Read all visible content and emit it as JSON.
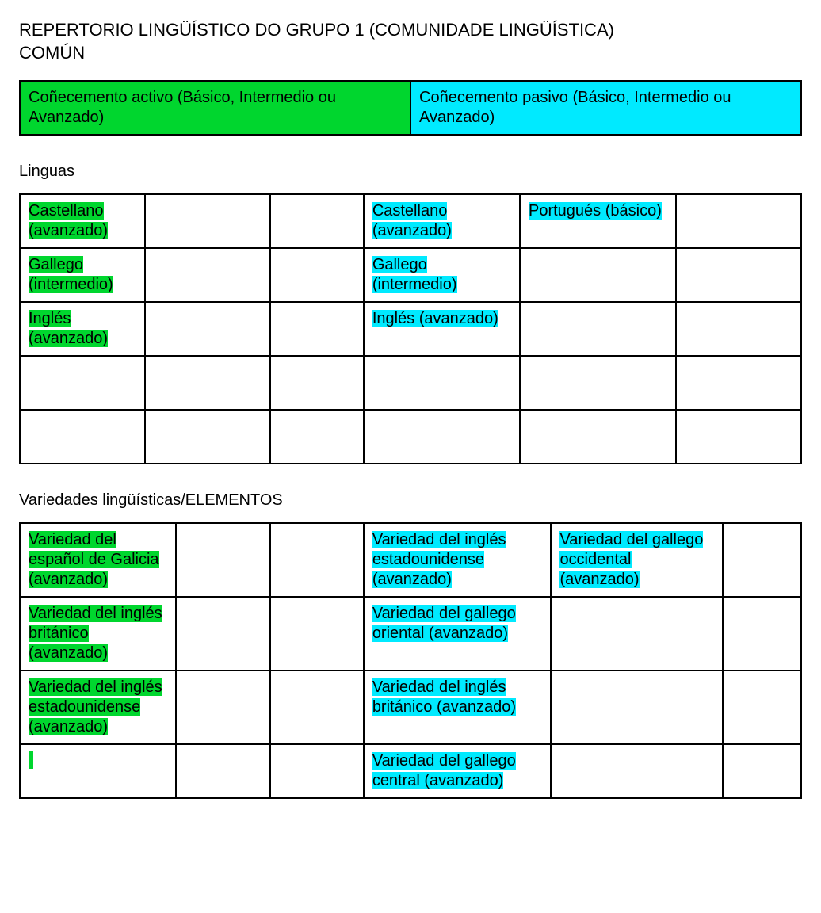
{
  "colors": {
    "green": "#00d62e",
    "cyan": "#00eaff",
    "border": "#000000",
    "text": "#000000",
    "background": "#ffffff"
  },
  "typography": {
    "title_fontsize": 22,
    "body_fontsize": 20,
    "font_family": "Arial"
  },
  "title": {
    "line1": "REPERTORIO LINGÜÍSTICO DO GRUPO 1 (COMUNIDADE LINGÜÍSTICA)",
    "line2": "COMÚN"
  },
  "legend": {
    "active": "Coñecemento activo (Básico, Intermedio ou Avanzado)",
    "passive": "Coñecemento pasivo (Básico, Intermedio ou Avanzado)"
  },
  "sections": {
    "linguas": {
      "heading": "Linguas",
      "columns": 6,
      "col_widths_percent": [
        16,
        16,
        12,
        20,
        20,
        16
      ],
      "rows": [
        [
          {
            "text": "Castellano (avanzado)",
            "hl": "green"
          },
          {
            "text": "",
            "hl": null
          },
          {
            "text": "",
            "hl": null
          },
          {
            "text": "Castellano (avanzado)",
            "hl": "cyan"
          },
          {
            "text": "Portugués (básico)",
            "hl": "cyan"
          },
          {
            "text": "",
            "hl": null
          }
        ],
        [
          {
            "text": "Gallego (intermedio)",
            "hl": "green"
          },
          {
            "text": "",
            "hl": null
          },
          {
            "text": "",
            "hl": null
          },
          {
            "text": "Gallego (intermedio)",
            "hl": "cyan"
          },
          {
            "text": "",
            "hl": null
          },
          {
            "text": "",
            "hl": null
          }
        ],
        [
          {
            "text": "Inglés (avanzado)",
            "hl": "green"
          },
          {
            "text": "",
            "hl": null
          },
          {
            "text": "",
            "hl": null
          },
          {
            "text": "Inglés (avanzado)",
            "hl": "cyan"
          },
          {
            "text": "",
            "hl": null
          },
          {
            "text": "",
            "hl": null
          }
        ],
        [
          {
            "text": "",
            "hl": null
          },
          {
            "text": "",
            "hl": null
          },
          {
            "text": "",
            "hl": null
          },
          {
            "text": "",
            "hl": null
          },
          {
            "text": "",
            "hl": null
          },
          {
            "text": "",
            "hl": null
          }
        ],
        [
          {
            "text": "",
            "hl": null
          },
          {
            "text": "",
            "hl": null
          },
          {
            "text": "",
            "hl": null
          },
          {
            "text": "",
            "hl": null
          },
          {
            "text": "",
            "hl": null
          },
          {
            "text": "",
            "hl": null
          }
        ]
      ]
    },
    "variedades": {
      "heading": "Variedades lingüísticas/ELEMENTOS",
      "columns": 6,
      "col_widths_percent": [
        20,
        12,
        12,
        24,
        22,
        10
      ],
      "rows": [
        [
          {
            "text": "Variedad del español de Galicia (avanzado)",
            "hl": "green"
          },
          {
            "text": "",
            "hl": null
          },
          {
            "text": "",
            "hl": null
          },
          {
            "text": "Variedad del inglés estadounidense (avanzado)",
            "hl": "cyan"
          },
          {
            "text": "Variedad del gallego occidental (avanzado)",
            "hl": "cyan"
          },
          {
            "text": "",
            "hl": null
          }
        ],
        [
          {
            "text": "Variedad del inglés británico (avanzado)",
            "hl": "green"
          },
          {
            "text": "",
            "hl": null
          },
          {
            "text": "",
            "hl": null
          },
          {
            "text": "Variedad del gallego oriental (avanzado)",
            "hl": "cyan"
          },
          {
            "text": "",
            "hl": null
          },
          {
            "text": "",
            "hl": null
          }
        ],
        [
          {
            "text": "Variedad del inglés estadounidense (avanzado)",
            "hl": "green"
          },
          {
            "text": "",
            "hl": null
          },
          {
            "text": "",
            "hl": null
          },
          {
            "text": "Variedad del inglés británico (avanzado)",
            "hl": "cyan"
          },
          {
            "text": "",
            "hl": null
          },
          {
            "text": "",
            "hl": null
          }
        ],
        [
          {
            "text": "",
            "hl": "cursor"
          },
          {
            "text": "",
            "hl": null
          },
          {
            "text": "",
            "hl": null
          },
          {
            "text": "Variedad del gallego central (avanzado)",
            "hl": "cyan"
          },
          {
            "text": "",
            "hl": null
          },
          {
            "text": "",
            "hl": null
          }
        ]
      ]
    }
  }
}
